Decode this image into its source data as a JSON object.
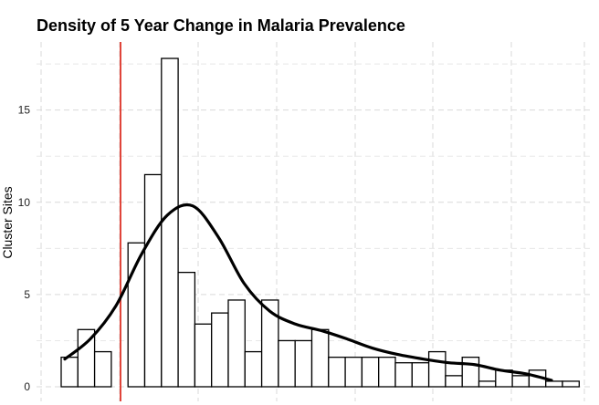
{
  "chart_data": {
    "type": "bar",
    "title": "Density of 5 Year Change in Malaria Prevalence",
    "xlabel": "",
    "ylabel": "Cluster Sites",
    "ylim": [
      0,
      18
    ],
    "yticks": [
      0,
      5,
      10,
      15
    ],
    "grid": true,
    "legend": "none",
    "series": [
      {
        "values": [
          1.6,
          3.1,
          1.9,
          0,
          7.8,
          11.5,
          17.8,
          6.2,
          3.4,
          4.0,
          4.7,
          1.9,
          4.7,
          2.5,
          2.5,
          3.1,
          1.6,
          1.6,
          1.6,
          1.6,
          1.3,
          1.3,
          1.9,
          0.6,
          1.6,
          0.3,
          0.9,
          0.6,
          0.9,
          0.3,
          0.3
        ]
      }
    ],
    "density_curve": [
      1.5,
      2.6,
      4.4,
      7.2,
      9.3,
      9.8,
      8.1,
      5.6,
      4.1,
      3.4,
      3.05,
      2.6,
      2.1,
      1.75,
      1.5,
      1.3,
      1.2,
      0.9,
      0.7,
      0.35
    ],
    "reference_line_color": "#e0453a",
    "bar_color": "#ffffff",
    "curve_color": "#000000"
  }
}
